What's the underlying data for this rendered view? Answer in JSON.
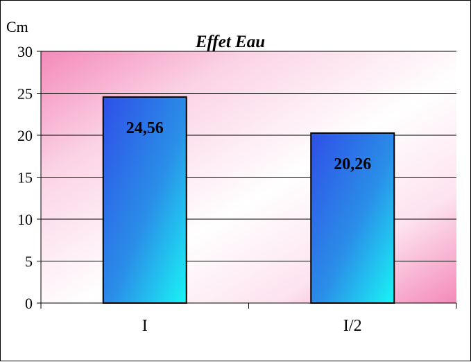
{
  "chart_data": {
    "type": "bar",
    "title": "Effet Eau",
    "ylabel": "Cm",
    "xlabel": "",
    "categories": [
      "I",
      "I/2"
    ],
    "values": [
      24.56,
      20.26
    ],
    "data_labels": [
      "24,56",
      "20,26"
    ],
    "ylim": [
      0,
      30
    ],
    "yticks": [
      0,
      5,
      10,
      15,
      20,
      25,
      30
    ],
    "grid": true,
    "legend": "none"
  },
  "colors": {
    "bar_top": "#2f4fe8",
    "bar_bottom": "#19f5f5",
    "plot_bg_pink": "#f48ab8",
    "plot_bg_white": "#ffffff",
    "gridline": "#000000"
  }
}
